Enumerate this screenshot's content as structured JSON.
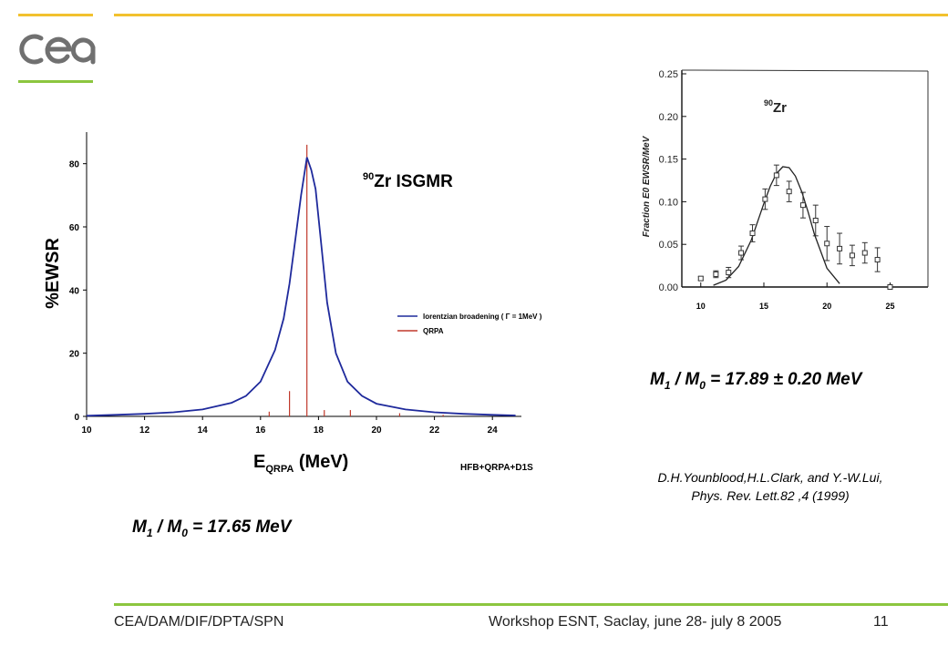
{
  "colors": {
    "accent_yellow": "#f2c12e",
    "accent_green": "#8cc63f",
    "logo_gray": "#707070",
    "lorentzian_line": "#1f2a9c",
    "qrpa_line": "#c0392b"
  },
  "logo": {
    "icon": "cea-logo"
  },
  "chart_data": [
    {
      "type": "line",
      "title": "Zr ISGMR",
      "title_superscript": "90",
      "xlabel": "E",
      "xlabel_subscript": "QRPA",
      "xlabel_unit": "(MeV)",
      "ylabel": "%EWSR",
      "xlim": [
        10,
        25
      ],
      "ylim": [
        0,
        90
      ],
      "x_ticks": [
        10,
        12,
        14,
        16,
        18,
        20,
        22,
        24
      ],
      "y_ticks": [
        0,
        20,
        40,
        60,
        80
      ],
      "grid": false,
      "legend_position": "right",
      "legend": [
        {
          "label": "lorentzian broadening ( Γ = 1MeV )",
          "color": "#1f2a9c"
        },
        {
          "label": "QRPA",
          "color": "#c0392b"
        }
      ],
      "annotation": "HFB+QRPA+D1S",
      "series": [
        {
          "name": "lorentzian broadening ( Γ = 1MeV )",
          "kind": "line",
          "x": [
            10.0,
            11.0,
            12.0,
            13.0,
            14.0,
            15.0,
            15.5,
            16.0,
            16.5,
            16.8,
            17.0,
            17.2,
            17.4,
            17.6,
            17.75,
            17.9,
            18.1,
            18.3,
            18.6,
            19.0,
            19.5,
            20.0,
            21.0,
            22.0,
            23.0,
            24.0,
            24.8
          ],
          "y": [
            0.2,
            0.5,
            0.8,
            1.3,
            2.2,
            4.3,
            6.5,
            11.0,
            21.0,
            31.0,
            42.0,
            56.0,
            70.0,
            82.0,
            78.0,
            72.0,
            54.0,
            36.0,
            20.0,
            11.0,
            6.5,
            4.0,
            2.2,
            1.3,
            0.8,
            0.5,
            0.3
          ]
        },
        {
          "name": "QRPA",
          "kind": "stem",
          "x": [
            16.3,
            17.0,
            17.6,
            18.2,
            19.1,
            20.8,
            22.3
          ],
          "y": [
            1.5,
            8.0,
            86.0,
            2.0,
            2.0,
            1.0,
            0.5
          ]
        }
      ]
    },
    {
      "type": "scatter",
      "title": "Zr",
      "title_superscript": "90",
      "xlabel": "",
      "ylabel": "Fraction E0 EWSR/MeV",
      "xlim": [
        8.5,
        28
      ],
      "ylim": [
        0,
        0.25
      ],
      "x_ticks": [
        10,
        15,
        20,
        25
      ],
      "y_ticks": [
        "0.00",
        "0.05",
        "0.10",
        "0.15",
        "0.20",
        "0.25"
      ],
      "grid": false,
      "points": {
        "x": [
          10.0,
          11.2,
          12.2,
          13.2,
          14.1,
          15.1,
          16.0,
          17.0,
          18.1,
          19.1,
          20.0,
          21.0,
          22.0,
          23.0,
          24.0,
          25.0
        ],
        "y": [
          0.01,
          0.015,
          0.017,
          0.04,
          0.063,
          0.103,
          0.131,
          0.112,
          0.096,
          0.078,
          0.051,
          0.045,
          0.037,
          0.04,
          0.032,
          0.0
        ],
        "err": [
          0.002,
          0.004,
          0.006,
          0.008,
          0.01,
          0.012,
          0.012,
          0.012,
          0.015,
          0.018,
          0.02,
          0.018,
          0.012,
          0.012,
          0.014,
          0.0
        ]
      },
      "fit": {
        "x": [
          11.0,
          12.0,
          13.0,
          14.0,
          15.0,
          15.5,
          16.0,
          16.5,
          17.0,
          17.5,
          18.0,
          18.5,
          19.0,
          20.0,
          21.0
        ],
        "y": [
          0.002,
          0.008,
          0.024,
          0.055,
          0.098,
          0.118,
          0.133,
          0.141,
          0.14,
          0.13,
          0.112,
          0.088,
          0.062,
          0.022,
          0.004
        ]
      }
    }
  ],
  "results": {
    "theory_ratio": {
      "m1": "M",
      "sub1": "1",
      "slash": " / ",
      "m0": "M",
      "sub0": "0",
      "value": " = 17.65 MeV"
    },
    "experiment_ratio": {
      "m1": "M",
      "sub1": "1",
      "slash": " / ",
      "m0": "M",
      "sub0": "0",
      "value": " = 17.89 ± 0.20 MeV"
    }
  },
  "reference": {
    "line1": "D.H.Younblood,H.L.Clark, and Y.-W.Lui,",
    "line2": "Phys. Rev. Lett.82 ,4 (1999)"
  },
  "footer": {
    "organization": "CEA/DAM/DIF/DPTA/SPN",
    "event": "Workshop ESNT, Saclay,  june 28- july 8 2005",
    "page_number": "11"
  }
}
